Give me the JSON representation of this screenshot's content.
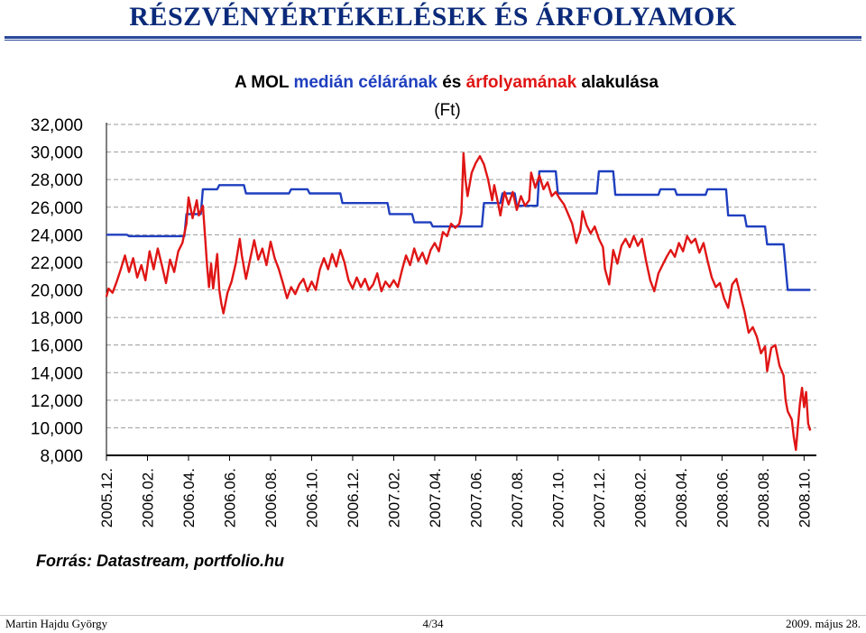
{
  "slide": {
    "title": "RÉSZVÉNYÉRTÉKELÉSEK ÉS ÁRFOLYAMOK",
    "footer_left": "Martin Hajdu György",
    "footer_center": "4/34",
    "footer_right": "2009. május 28."
  },
  "colors": {
    "title": "#0b2a7a",
    "target_series": "#1f3fbf",
    "price_series": "#e01515",
    "grid": "#9a9a9a",
    "text": "#000000"
  },
  "chart_data": {
    "type": "line",
    "title_parts": [
      {
        "text": "A MOL ",
        "color": "#000000"
      },
      {
        "text": "medián célárának",
        "color": "#1f3fbf"
      },
      {
        "text": " és ",
        "color": "#000000"
      },
      {
        "text": "árfolyamának",
        "color": "#e01515"
      },
      {
        "text": " alakulása",
        "color": "#000000"
      }
    ],
    "subtitle": "(Ft)",
    "source": "Forrás: Datastream, portfolio.hu",
    "ylim": [
      8000,
      32000
    ],
    "y_ticks": [
      "32,000",
      "30,000",
      "28,000",
      "26,000",
      "24,000",
      "22,000",
      "20,000",
      "18,000",
      "16,000",
      "14,000",
      "12,000",
      "10,000",
      "8,000"
    ],
    "x_ticks": [
      "2005.12.",
      "2006.02.",
      "2006.04.",
      "2006.06.",
      "2006.08.",
      "2006.10.",
      "2006.12.",
      "2007.02.",
      "2007.04.",
      "2007.06.",
      "2007.08.",
      "2007.10.",
      "2007.12.",
      "2008.02.",
      "2008.04.",
      "2008.06.",
      "2008.08.",
      "2008.10."
    ],
    "x_range_months": [
      0,
      17.3
    ],
    "grid": "horizontal-dashed",
    "series": [
      {
        "name": "medián célár",
        "points": [
          [
            0.0,
            24000
          ],
          [
            0.5,
            24000
          ],
          [
            0.55,
            23900
          ],
          [
            1.9,
            23900
          ],
          [
            1.95,
            25500
          ],
          [
            2.3,
            25500
          ],
          [
            2.35,
            27300
          ],
          [
            2.7,
            27300
          ],
          [
            2.75,
            27600
          ],
          [
            3.35,
            27600
          ],
          [
            3.4,
            27000
          ],
          [
            4.45,
            27000
          ],
          [
            4.5,
            27300
          ],
          [
            4.9,
            27300
          ],
          [
            4.95,
            27000
          ],
          [
            5.7,
            27000
          ],
          [
            5.75,
            26300
          ],
          [
            6.85,
            26300
          ],
          [
            6.9,
            25500
          ],
          [
            7.45,
            25500
          ],
          [
            7.5,
            24900
          ],
          [
            7.9,
            24900
          ],
          [
            7.95,
            24600
          ],
          [
            9.15,
            24600
          ],
          [
            9.2,
            26300
          ],
          [
            9.6,
            26300
          ],
          [
            9.65,
            27000
          ],
          [
            9.95,
            27000
          ],
          [
            10.0,
            26100
          ],
          [
            10.5,
            26100
          ],
          [
            10.55,
            28600
          ],
          [
            10.95,
            28600
          ],
          [
            11.0,
            27000
          ],
          [
            11.95,
            27000
          ],
          [
            12.0,
            28600
          ],
          [
            12.35,
            28600
          ],
          [
            12.4,
            26900
          ],
          [
            13.45,
            26900
          ],
          [
            13.5,
            27300
          ],
          [
            13.85,
            27300
          ],
          [
            13.9,
            26900
          ],
          [
            14.6,
            26900
          ],
          [
            14.65,
            27300
          ],
          [
            15.1,
            27300
          ],
          [
            15.15,
            25400
          ],
          [
            15.55,
            25400
          ],
          [
            15.6,
            24600
          ],
          [
            16.05,
            24600
          ],
          [
            16.1,
            23300
          ],
          [
            16.5,
            23300
          ],
          [
            16.6,
            20000
          ],
          [
            17.15,
            20000
          ]
        ]
      },
      {
        "name": "árfolyam",
        "points": [
          [
            0.0,
            19500
          ],
          [
            0.05,
            20100
          ],
          [
            0.15,
            19800
          ],
          [
            0.25,
            20600
          ],
          [
            0.35,
            21500
          ],
          [
            0.45,
            22500
          ],
          [
            0.55,
            21300
          ],
          [
            0.65,
            22300
          ],
          [
            0.75,
            20900
          ],
          [
            0.85,
            21800
          ],
          [
            0.95,
            20700
          ],
          [
            1.05,
            22800
          ],
          [
            1.15,
            21500
          ],
          [
            1.25,
            23000
          ],
          [
            1.35,
            21800
          ],
          [
            1.45,
            20500
          ],
          [
            1.55,
            22200
          ],
          [
            1.65,
            21300
          ],
          [
            1.75,
            22800
          ],
          [
            1.85,
            23400
          ],
          [
            1.95,
            24800
          ],
          [
            2.0,
            26700
          ],
          [
            2.1,
            25200
          ],
          [
            2.2,
            26500
          ],
          [
            2.25,
            25400
          ],
          [
            2.35,
            26100
          ],
          [
            2.4,
            24000
          ],
          [
            2.45,
            21800
          ],
          [
            2.5,
            20200
          ],
          [
            2.55,
            21900
          ],
          [
            2.6,
            20100
          ],
          [
            2.7,
            22600
          ],
          [
            2.75,
            20000
          ],
          [
            2.8,
            19000
          ],
          [
            2.85,
            18300
          ],
          [
            2.95,
            19800
          ],
          [
            3.05,
            20600
          ],
          [
            3.15,
            21900
          ],
          [
            3.25,
            23700
          ],
          [
            3.3,
            22500
          ],
          [
            3.4,
            20800
          ],
          [
            3.5,
            22200
          ],
          [
            3.6,
            23600
          ],
          [
            3.7,
            22200
          ],
          [
            3.8,
            23000
          ],
          [
            3.9,
            21800
          ],
          [
            4.0,
            23500
          ],
          [
            4.1,
            22300
          ],
          [
            4.2,
            21500
          ],
          [
            4.3,
            20500
          ],
          [
            4.4,
            19400
          ],
          [
            4.5,
            20200
          ],
          [
            4.6,
            19700
          ],
          [
            4.7,
            20400
          ],
          [
            4.8,
            20800
          ],
          [
            4.9,
            19900
          ],
          [
            5.0,
            20600
          ],
          [
            5.1,
            20000
          ],
          [
            5.2,
            21500
          ],
          [
            5.3,
            22300
          ],
          [
            5.4,
            21500
          ],
          [
            5.5,
            22600
          ],
          [
            5.6,
            21700
          ],
          [
            5.7,
            22900
          ],
          [
            5.8,
            22000
          ],
          [
            5.9,
            20700
          ],
          [
            6.0,
            20100
          ],
          [
            6.1,
            20900
          ],
          [
            6.2,
            20200
          ],
          [
            6.3,
            20800
          ],
          [
            6.4,
            20000
          ],
          [
            6.5,
            20400
          ],
          [
            6.6,
            21200
          ],
          [
            6.7,
            19900
          ],
          [
            6.8,
            20600
          ],
          [
            6.9,
            20200
          ],
          [
            7.0,
            20700
          ],
          [
            7.1,
            20200
          ],
          [
            7.2,
            21400
          ],
          [
            7.3,
            22500
          ],
          [
            7.4,
            21800
          ],
          [
            7.5,
            23000
          ],
          [
            7.6,
            22100
          ],
          [
            7.7,
            22700
          ],
          [
            7.8,
            21900
          ],
          [
            7.9,
            22900
          ],
          [
            8.0,
            23400
          ],
          [
            8.1,
            22800
          ],
          [
            8.2,
            24200
          ],
          [
            8.3,
            23900
          ],
          [
            8.4,
            24800
          ],
          [
            8.5,
            24500
          ],
          [
            8.6,
            24800
          ],
          [
            8.65,
            25600
          ],
          [
            8.7,
            29900
          ],
          [
            8.75,
            28000
          ],
          [
            8.8,
            26800
          ],
          [
            8.9,
            28500
          ],
          [
            9.0,
            29200
          ],
          [
            9.1,
            29700
          ],
          [
            9.2,
            29100
          ],
          [
            9.3,
            28000
          ],
          [
            9.4,
            26500
          ],
          [
            9.45,
            27600
          ],
          [
            9.55,
            26200
          ],
          [
            9.6,
            25400
          ],
          [
            9.7,
            27100
          ],
          [
            9.8,
            26200
          ],
          [
            9.9,
            27100
          ],
          [
            10.0,
            25800
          ],
          [
            10.1,
            26800
          ],
          [
            10.2,
            26100
          ],
          [
            10.3,
            26500
          ],
          [
            10.35,
            28500
          ],
          [
            10.45,
            27400
          ],
          [
            10.55,
            28300
          ],
          [
            10.65,
            27300
          ],
          [
            10.75,
            27800
          ],
          [
            10.85,
            26800
          ],
          [
            10.95,
            27100
          ],
          [
            11.05,
            26600
          ],
          [
            11.15,
            26200
          ],
          [
            11.25,
            25500
          ],
          [
            11.35,
            24800
          ],
          [
            11.45,
            23400
          ],
          [
            11.55,
            24300
          ],
          [
            11.6,
            25700
          ],
          [
            11.7,
            24700
          ],
          [
            11.8,
            24100
          ],
          [
            11.9,
            24600
          ],
          [
            12.0,
            23700
          ],
          [
            12.1,
            23100
          ],
          [
            12.15,
            21500
          ],
          [
            12.25,
            20400
          ],
          [
            12.35,
            22900
          ],
          [
            12.45,
            21900
          ],
          [
            12.55,
            23200
          ],
          [
            12.65,
            23700
          ],
          [
            12.75,
            23100
          ],
          [
            12.85,
            23900
          ],
          [
            12.95,
            23200
          ],
          [
            13.05,
            23700
          ],
          [
            13.15,
            22100
          ],
          [
            13.25,
            20700
          ],
          [
            13.35,
            19900
          ],
          [
            13.45,
            21200
          ],
          [
            13.55,
            21800
          ],
          [
            13.65,
            22400
          ],
          [
            13.75,
            22900
          ],
          [
            13.85,
            22400
          ],
          [
            13.95,
            23400
          ],
          [
            14.05,
            22800
          ],
          [
            14.15,
            23900
          ],
          [
            14.25,
            23400
          ],
          [
            14.35,
            23700
          ],
          [
            14.45,
            22700
          ],
          [
            14.55,
            23400
          ],
          [
            14.65,
            22100
          ],
          [
            14.75,
            20900
          ],
          [
            14.85,
            20200
          ],
          [
            14.95,
            20500
          ],
          [
            15.05,
            19400
          ],
          [
            15.15,
            18700
          ],
          [
            15.25,
            20400
          ],
          [
            15.35,
            20800
          ],
          [
            15.45,
            19600
          ],
          [
            15.55,
            18400
          ],
          [
            15.65,
            16900
          ],
          [
            15.75,
            17300
          ],
          [
            15.85,
            16600
          ],
          [
            15.95,
            15400
          ],
          [
            16.05,
            15900
          ],
          [
            16.1,
            14100
          ],
          [
            16.2,
            15800
          ],
          [
            16.3,
            16000
          ],
          [
            16.4,
            14500
          ],
          [
            16.5,
            13800
          ],
          [
            16.55,
            12000
          ],
          [
            16.6,
            11200
          ],
          [
            16.7,
            10600
          ],
          [
            16.75,
            9300
          ],
          [
            16.8,
            8400
          ],
          [
            16.85,
            10100
          ],
          [
            16.9,
            11800
          ],
          [
            16.95,
            12900
          ],
          [
            17.0,
            11500
          ],
          [
            17.05,
            12600
          ],
          [
            17.1,
            10300
          ],
          [
            17.15,
            9800
          ]
        ]
      }
    ]
  }
}
